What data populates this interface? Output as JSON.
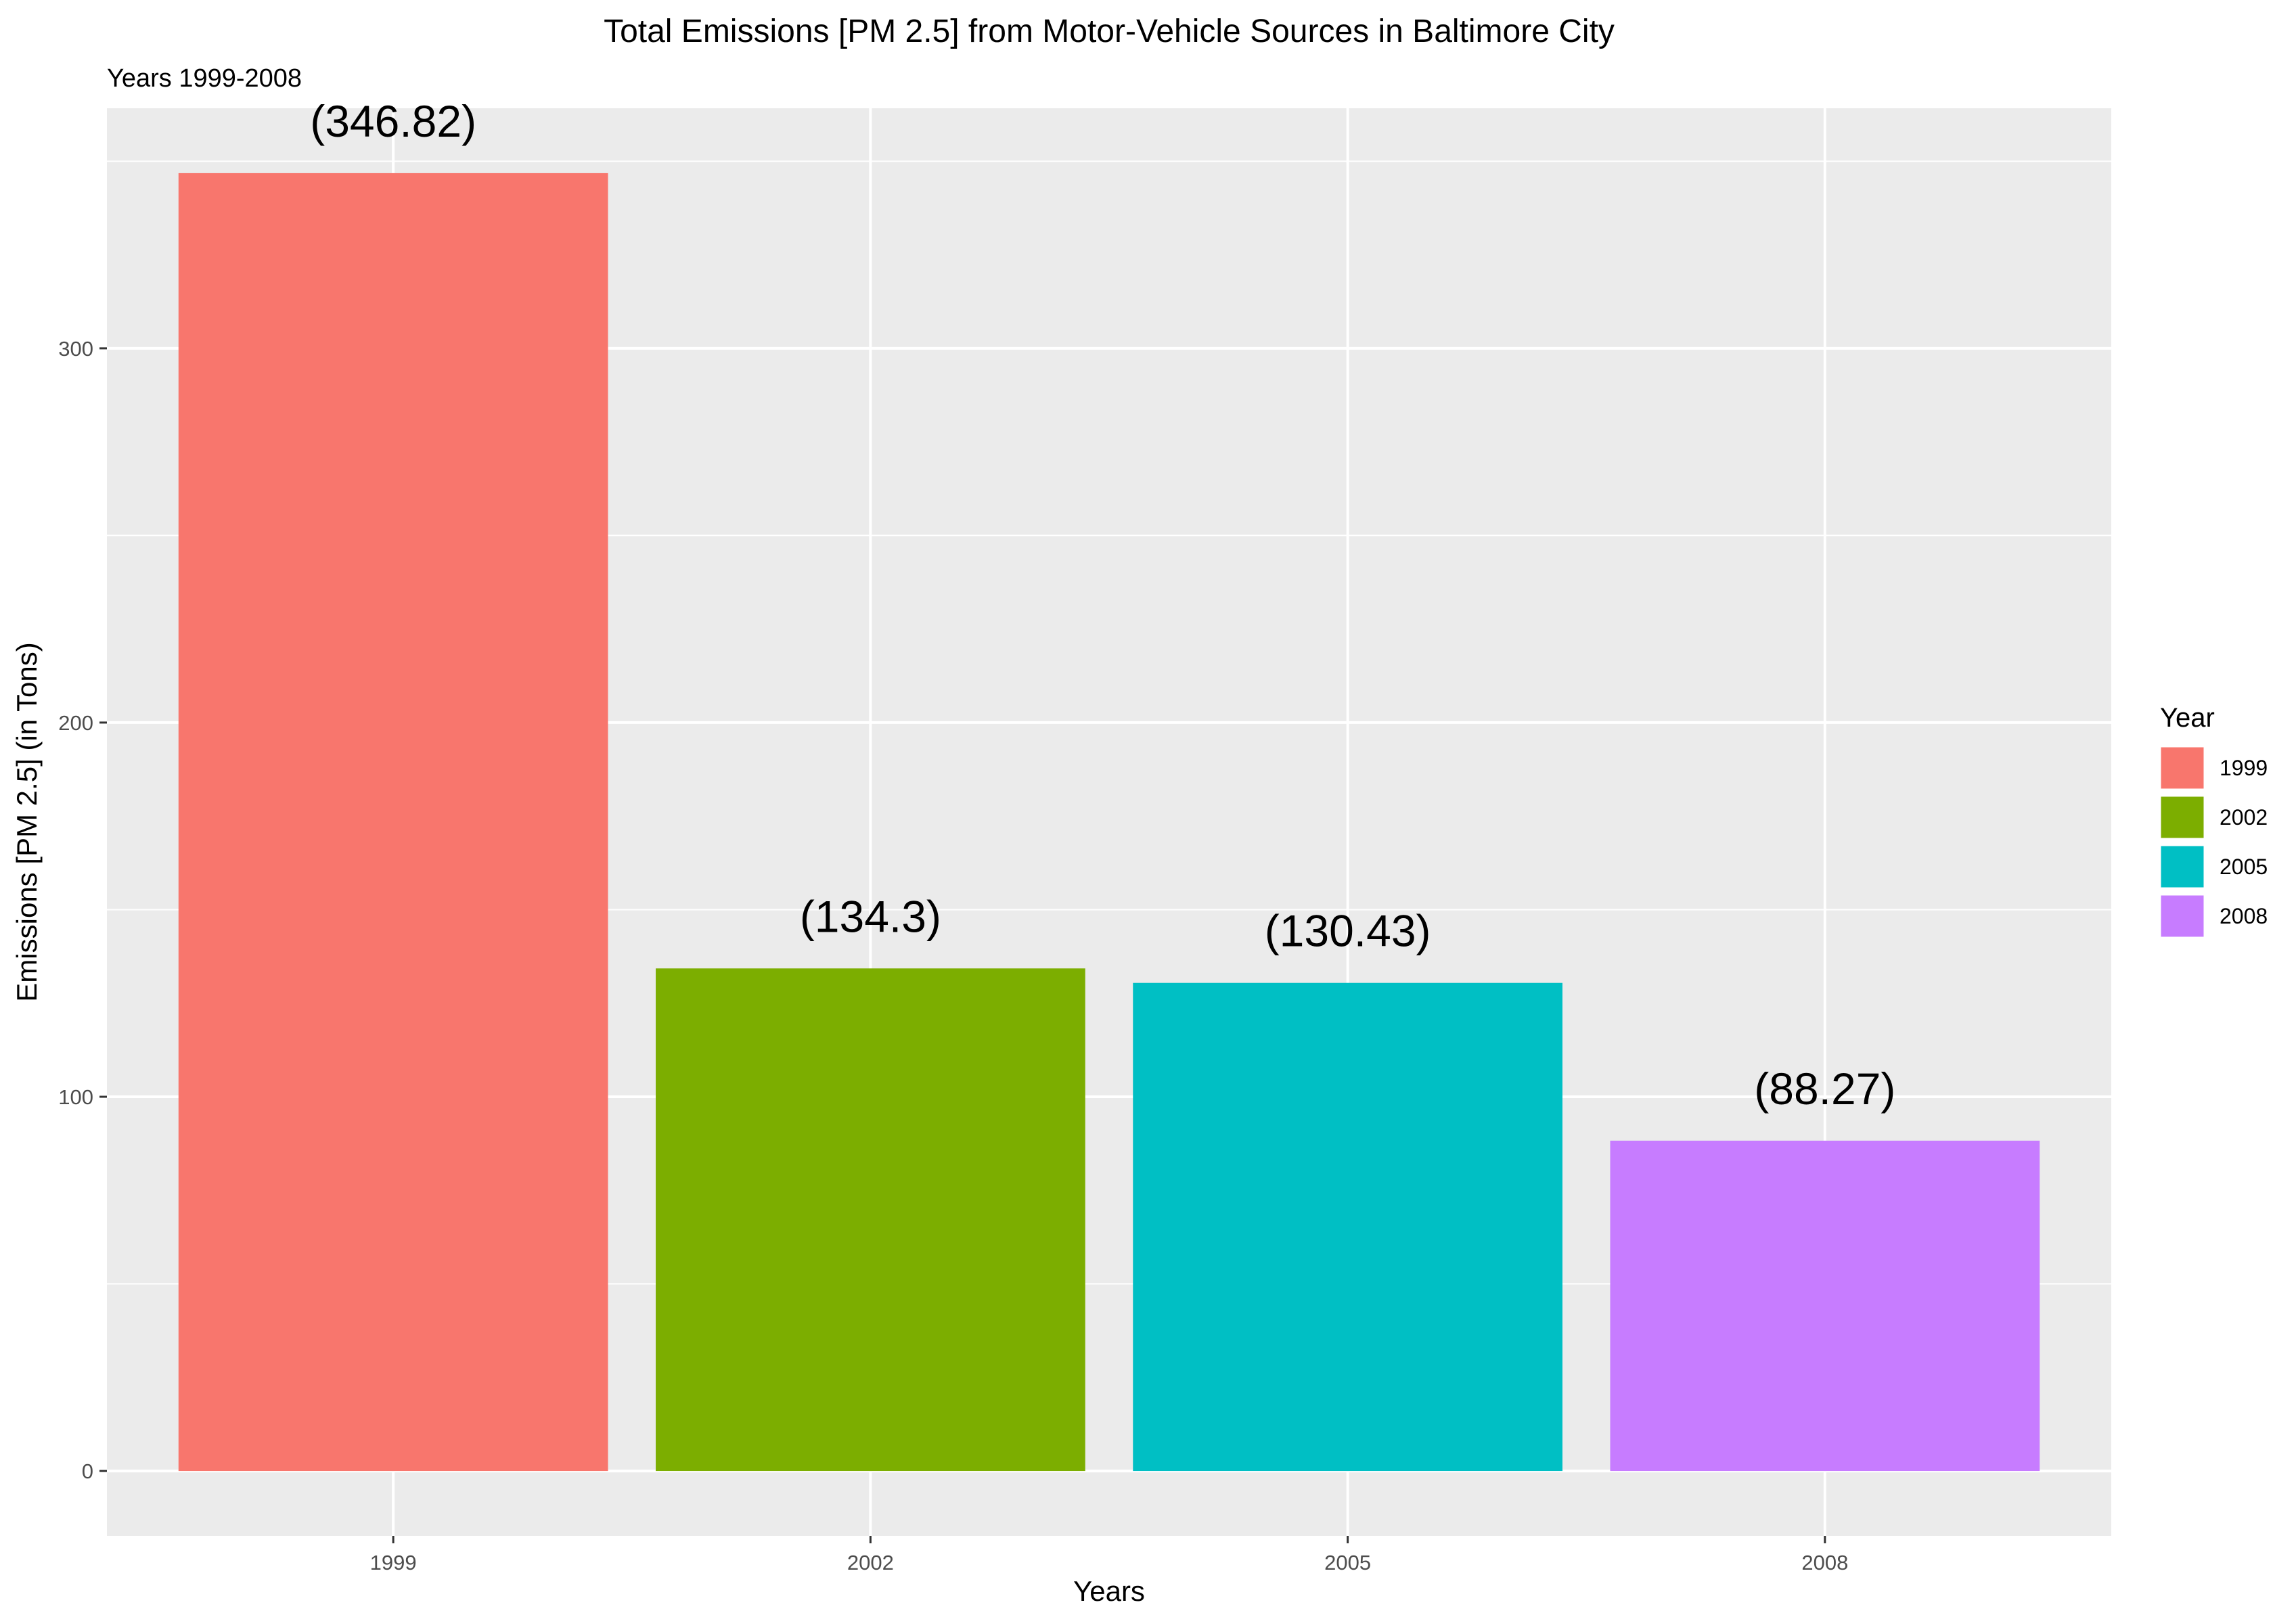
{
  "chart_data": {
    "type": "bar",
    "title": "Total Emissions [PM 2.5] from Motor-Vehicle Sources in Baltimore City",
    "subtitle": "Years 1999-2008",
    "xlabel": "Years",
    "ylabel": "Emissions [PM 2.5] (in Tons)",
    "categories": [
      "1999",
      "2002",
      "2005",
      "2008"
    ],
    "values": [
      346.82,
      134.3,
      130.43,
      88.27
    ],
    "data_labels": [
      "(346.82)",
      "(134.3)",
      "(130.43)",
      "(88.27)"
    ],
    "colors": [
      "#F8766D",
      "#7CAE00",
      "#00BFC4",
      "#C77CFF"
    ],
    "y_ticks": [
      0,
      100,
      200,
      300
    ],
    "ylim": [
      -17.34,
      364.16
    ],
    "grid": true,
    "panel_background": "#EBEBEB",
    "grid_color": "#FFFFFF",
    "legend": {
      "title": "Year",
      "position": "right",
      "entries": [
        "1999",
        "2002",
        "2005",
        "2008"
      ]
    }
  }
}
